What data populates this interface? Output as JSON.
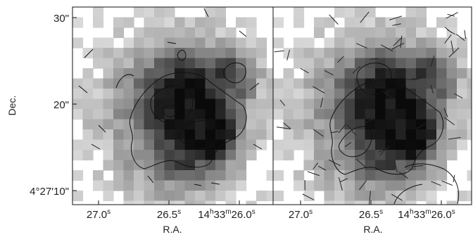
{
  "figure": {
    "panels": [
      {
        "id": "left",
        "content": "grayscale intensity map with contours"
      },
      {
        "id": "right",
        "content": "grayscale intensity map with polarization vectors and contours"
      }
    ],
    "y_axis": {
      "label": "Dec.",
      "ticks": [
        {
          "value": 30,
          "label": "30\""
        },
        {
          "value": 20,
          "label": "20\""
        },
        {
          "value": 10,
          "label": "4°27′10\""
        }
      ]
    },
    "x_axis": {
      "label": "R.A.",
      "ticks": [
        {
          "value": 27.0,
          "main": "27.0",
          "sup": "s"
        },
        {
          "value": 26.5,
          "main": "26.5",
          "sup": "s"
        },
        {
          "value": 26.0,
          "main": "14",
          "sup_h": "h",
          "main2": "33",
          "sup_m": "m",
          "main3": "26.0",
          "sup_s": "s"
        }
      ]
    },
    "colors": {
      "frame": "#111111",
      "contour": "#111111",
      "vector": "#222222"
    }
  }
}
